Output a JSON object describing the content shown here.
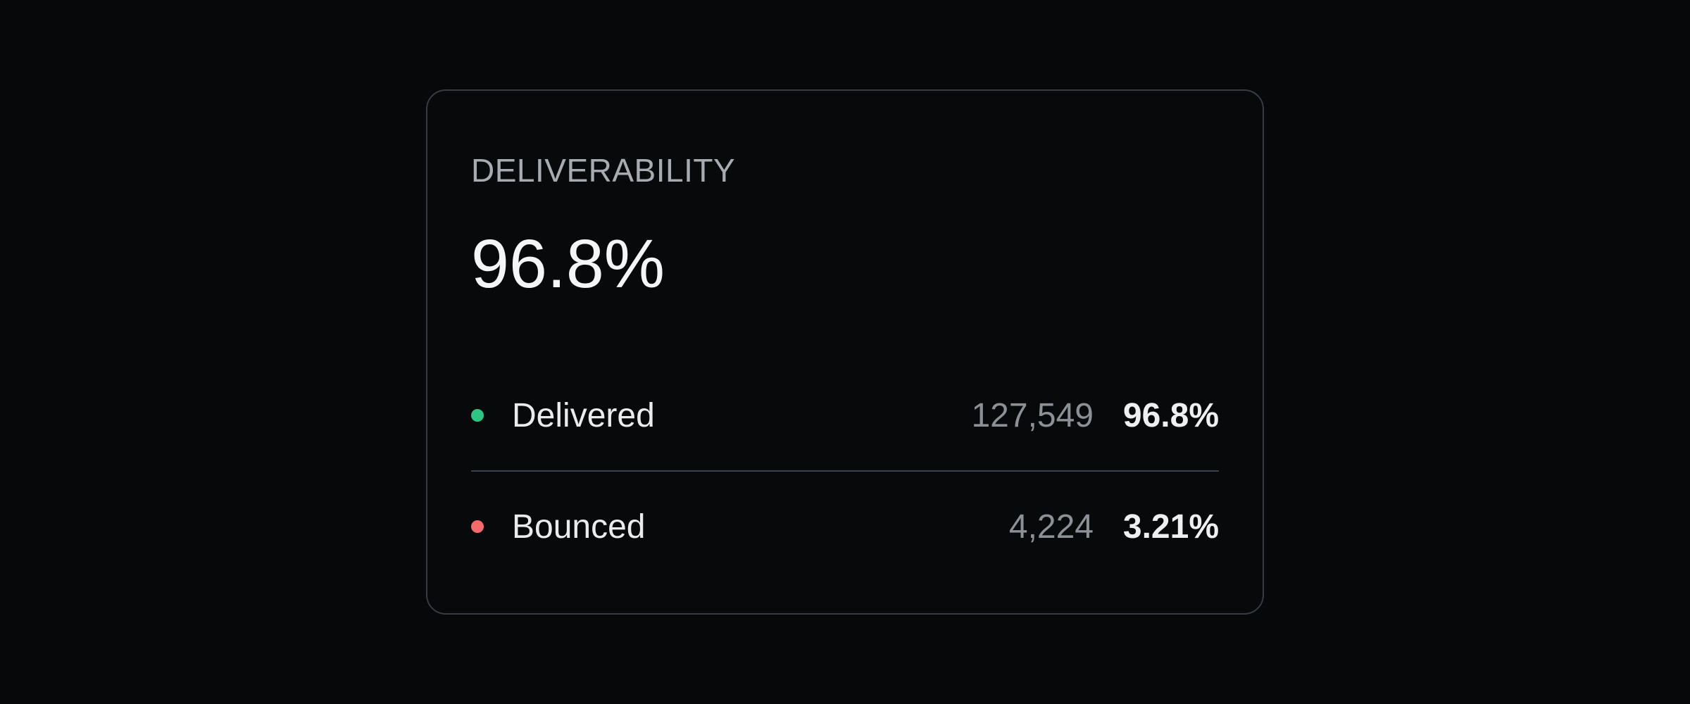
{
  "card": {
    "title": "DELIVERABILITY",
    "headline_value": "96.8%",
    "rows": [
      {
        "label": "Delivered",
        "count": "127,549",
        "percent": "96.8%",
        "dot_color": "#2fc583"
      },
      {
        "label": "Bounced",
        "count": "4,224",
        "percent": "3.21%",
        "dot_color": "#f56b6b"
      }
    ],
    "colors": {
      "page_background": "#07080a",
      "card_background": "#08090b",
      "card_border": "#363c44",
      "title_text": "#a7acb2",
      "headline_text": "#f4f5f6",
      "label_text": "#e9ebed",
      "count_text": "#8c9197",
      "percent_text": "#edeff1",
      "divider": "#3a414a",
      "delivered_dot": "#2fc583",
      "bounced_dot": "#f56b6b"
    }
  }
}
